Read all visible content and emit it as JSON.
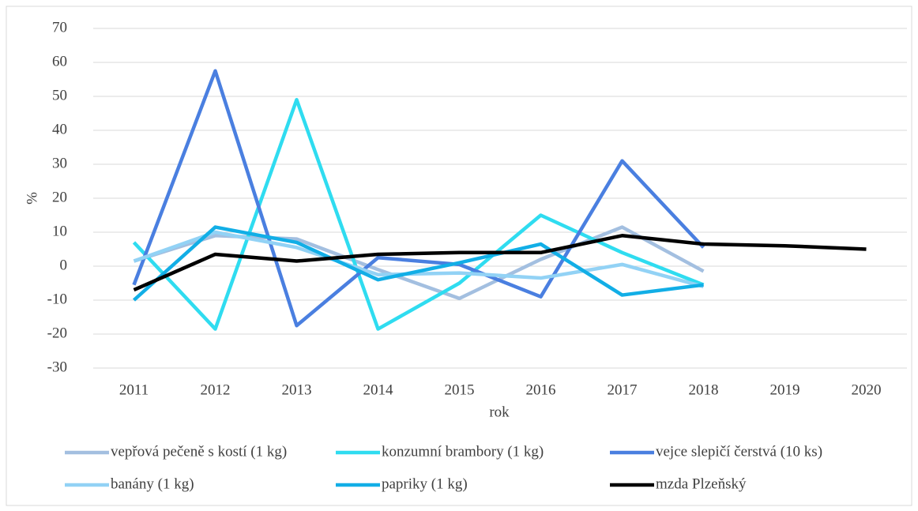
{
  "chart_data": {
    "type": "line",
    "x_label": "rok",
    "y_label": "%",
    "categories": [
      "2011",
      "2012",
      "2013",
      "2014",
      "2015",
      "2016",
      "2017",
      "2018",
      "2019",
      "2020"
    ],
    "series": [
      {
        "name": "vepřová pečeně s kostí (1 kg)",
        "color": "#a3bfe0",
        "values": [
          1.5,
          9,
          8,
          -1,
          -9.5,
          2,
          11.5,
          -1.5,
          null,
          null
        ]
      },
      {
        "name": "konzumní brambory (1 kg)",
        "color": "#2fdcf0",
        "values": [
          7,
          -18.5,
          49,
          -18.5,
          -5,
          15,
          4,
          -5.5,
          null,
          null
        ]
      },
      {
        "name": "vejce slepičí čerstvá (10 ks)",
        "color": "#4a7fe0",
        "values": [
          -5.5,
          57.5,
          -17.5,
          2.5,
          0.5,
          -9,
          31,
          5.5,
          null,
          null
        ]
      },
      {
        "name": "banány (1 kg)",
        "color": "#92d2f5",
        "values": [
          1.5,
          10,
          5.5,
          -2.5,
          -2,
          -3.5,
          0.5,
          -6,
          null,
          null
        ]
      },
      {
        "name": "papriky (1 kg)",
        "color": "#12aee6",
        "values": [
          -10,
          11.5,
          7,
          -4,
          1,
          6.5,
          -8.5,
          -5.5,
          null,
          null
        ]
      },
      {
        "name": "mzda Plzeňský",
        "color": "#000000",
        "values": [
          -7,
          3.5,
          1.5,
          3.5,
          4,
          4,
          9,
          6.5,
          6,
          5
        ]
      }
    ],
    "ylim": [
      -30,
      70
    ],
    "yticks": [
      -30,
      -20,
      -10,
      0,
      10,
      20,
      30,
      40,
      50,
      60,
      70
    ],
    "grid": true
  }
}
